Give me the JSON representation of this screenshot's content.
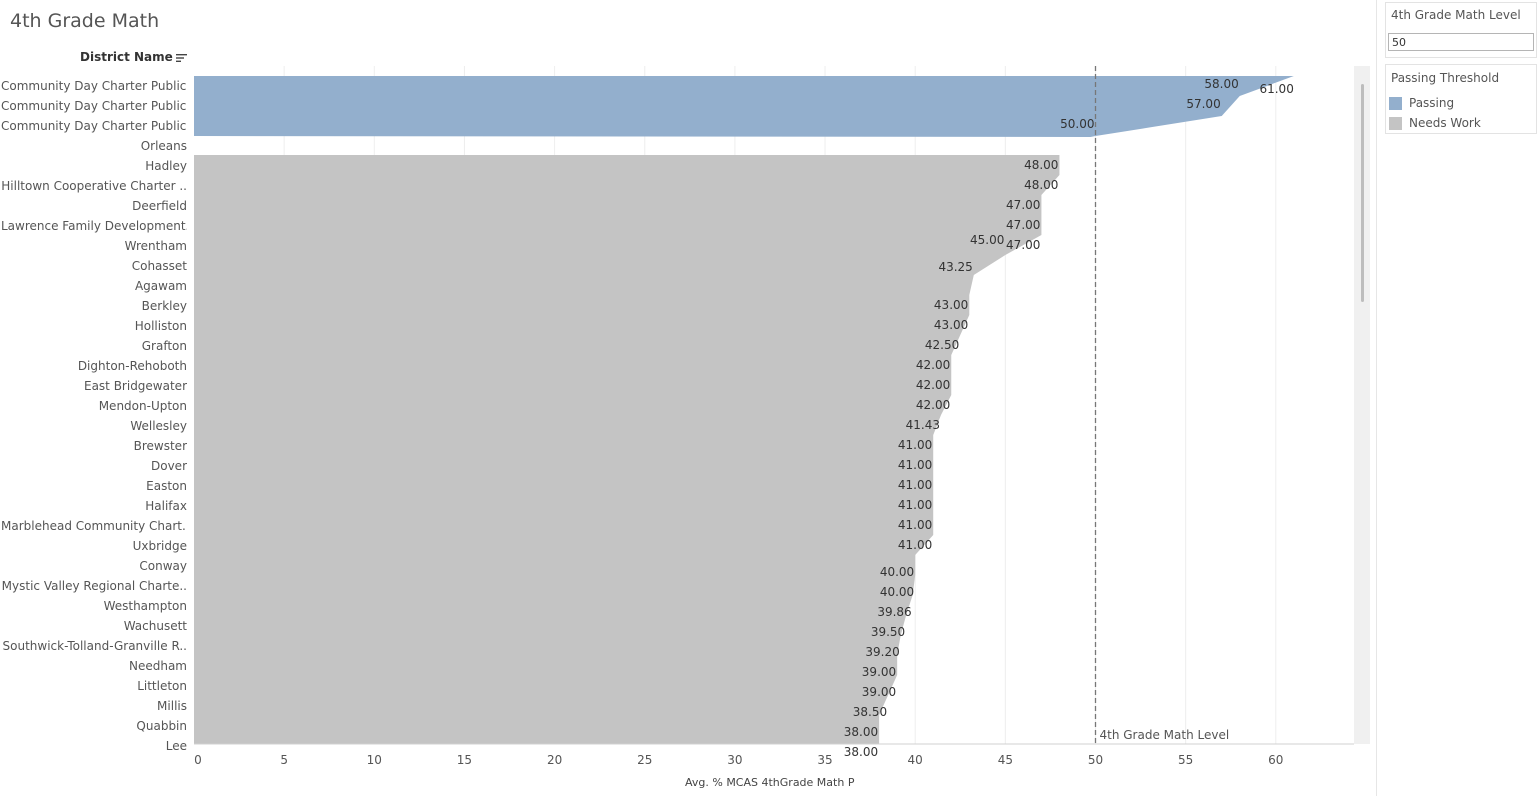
{
  "title": "4th Grade Math",
  "row_header": "District Name",
  "x_axis_title": "Avg. % MCAS 4thGrade Math P",
  "reference_line_label": "4th Grade Math Level",
  "filter": {
    "title": "4th Grade Math Level",
    "value": "50"
  },
  "legend": {
    "title": "Passing Threshold",
    "items": [
      {
        "label": "Passing",
        "color": "#93afcd"
      },
      {
        "label": "Needs Work",
        "color": "#c4c4c4"
      }
    ]
  },
  "icons": {
    "sort": "sort-descending-icon"
  },
  "chart_data": {
    "type": "area",
    "orientation": "horizontal",
    "xlim": [
      0,
      65
    ],
    "x_ticks": [
      0,
      5,
      10,
      15,
      20,
      25,
      30,
      35,
      40,
      45,
      50,
      55,
      60
    ],
    "reference_line": 50,
    "rows": [
      "Community Day Charter Public..",
      "Community Day Charter Public..",
      "Community Day Charter Public..",
      "Orleans",
      "Hadley",
      "Hilltown Cooperative Charter ..",
      "Deerfield",
      "Lawrence Family Development..",
      "Wrentham",
      "Cohasset",
      "Agawam",
      "Berkley",
      "Holliston",
      "Grafton",
      "Dighton-Rehoboth",
      "East Bridgewater",
      "Mendon-Upton",
      "Wellesley",
      "Brewster",
      "Dover",
      "Easton",
      "Halifax",
      "Marblehead Community Chart..",
      "Uxbridge",
      "Conway",
      "Mystic Valley Regional Charte..",
      "Westhampton",
      "Wachusett",
      "Southwick-Tolland-Granville R..",
      "Needham",
      "Littleton",
      "Millis",
      "Quabbin",
      "Lee"
    ],
    "series": [
      {
        "name": "Passing",
        "color": "#93afcd",
        "values": [
          61.0,
          58.0,
          57.0,
          50.0
        ],
        "labels": [
          "61.00",
          "58.00",
          "57.00",
          "50.00"
        ]
      },
      {
        "name": "Needs Work",
        "color": "#c4c4c4",
        "values": [
          48.0,
          48.0,
          47.0,
          47.0,
          47.0,
          45.0,
          43.25,
          43.0,
          43.0,
          42.5,
          42.0,
          42.0,
          42.0,
          41.43,
          41.0,
          41.0,
          41.0,
          41.0,
          41.0,
          41.0,
          40.0,
          40.0,
          39.86,
          39.5,
          39.2,
          39.0,
          39.0,
          38.5,
          38.0,
          38.0
        ],
        "labels": [
          "48.00",
          "48.00",
          "47.00",
          "47.00",
          "47.00",
          "45.00",
          "43.25",
          "43.00",
          "43.00",
          "42.50",
          "42.00",
          "42.00",
          "42.00",
          "41.43",
          "41.00",
          "41.00",
          "41.00",
          "41.00",
          "41.00",
          "41.00",
          "40.00",
          "40.00",
          "39.86",
          "39.50",
          "39.20",
          "39.00",
          "39.00",
          "38.50",
          "38.00",
          "38.00"
        ]
      }
    ]
  }
}
